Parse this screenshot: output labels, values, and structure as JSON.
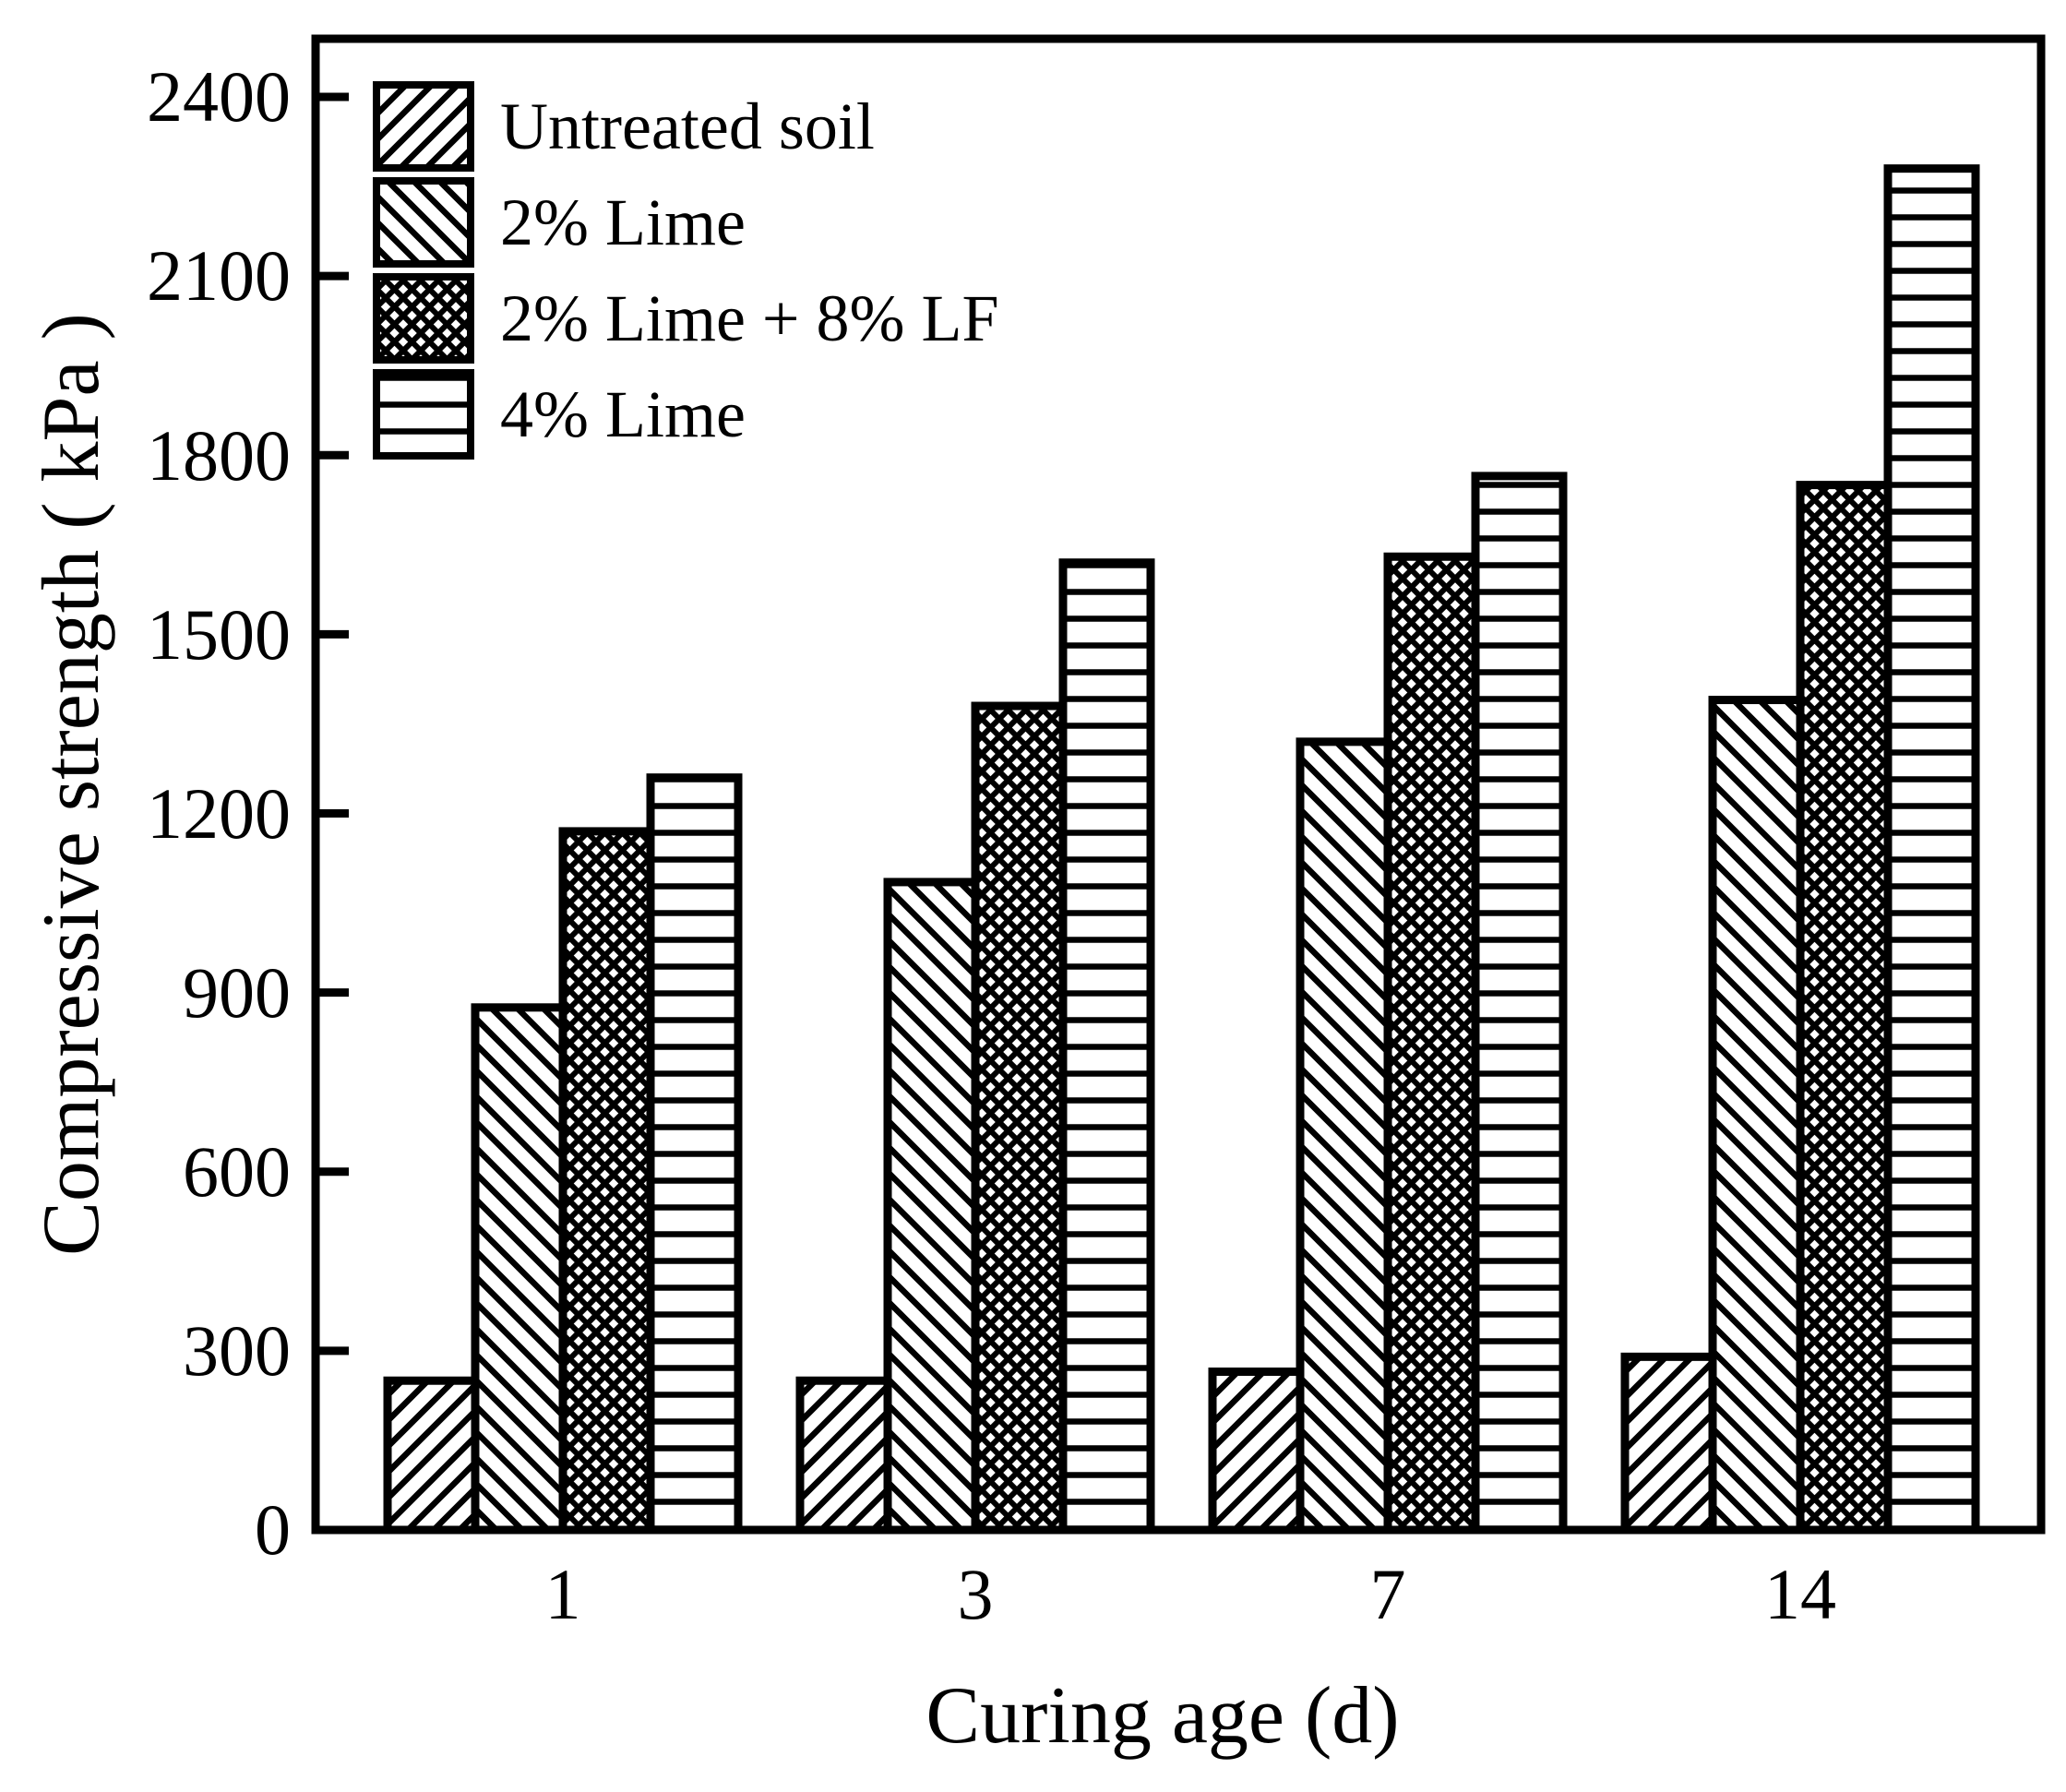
{
  "figure": {
    "background": "#ffffff",
    "ink_color": "#000000"
  },
  "chart_data": {
    "type": "bar",
    "title": "",
    "xlabel": "Curing age (d)",
    "ylabel": "Compressive strength ( kPa )",
    "categories": [
      "1",
      "3",
      "7",
      "14"
    ],
    "series": [
      {
        "name": "Untreated soil",
        "pattern": "diagonal-up",
        "values": [
          250,
          250,
          265,
          290
        ]
      },
      {
        "name": "2% Lime",
        "pattern": "diagonal-down",
        "values": [
          875,
          1085,
          1320,
          1390
        ]
      },
      {
        "name": "2% Lime + 8% LF",
        "pattern": "crosshatch",
        "values": [
          1170,
          1380,
          1630,
          1750
        ]
      },
      {
        "name": "4% Lime",
        "pattern": "horizontal",
        "values": [
          1260,
          1620,
          1765,
          2280
        ]
      }
    ],
    "ylim": [
      0,
      2400
    ],
    "ytick_step": 300,
    "ytick_labels": [
      "0",
      "300",
      "600",
      "900",
      "1200",
      "1500",
      "1800",
      "2100",
      "2400"
    ],
    "legend_position": "top-left",
    "grid": false,
    "bar_outline_color": "#000000",
    "bar_fill_background": "#ffffff"
  }
}
